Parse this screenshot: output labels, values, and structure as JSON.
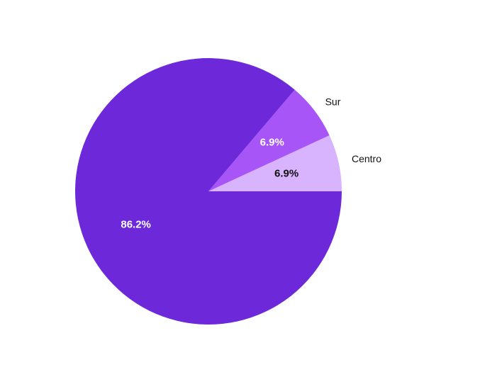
{
  "chart_data": {
    "type": "pie",
    "title": "",
    "legend": "none",
    "slices": [
      {
        "label": "Centro",
        "value": 6.9,
        "percent_label": "6.9%",
        "color": "#d8b4fe",
        "label_color": "#111111",
        "category_visible": true
      },
      {
        "label": "Sur",
        "value": 6.9,
        "percent_label": "6.9%",
        "color": "#a855f7",
        "label_color": "#ffffff",
        "category_visible": true
      },
      {
        "label": "",
        "value": 86.2,
        "percent_label": "86.2%",
        "color": "#6d28d9",
        "label_color": "#ffffff",
        "category_visible": false
      }
    ]
  }
}
